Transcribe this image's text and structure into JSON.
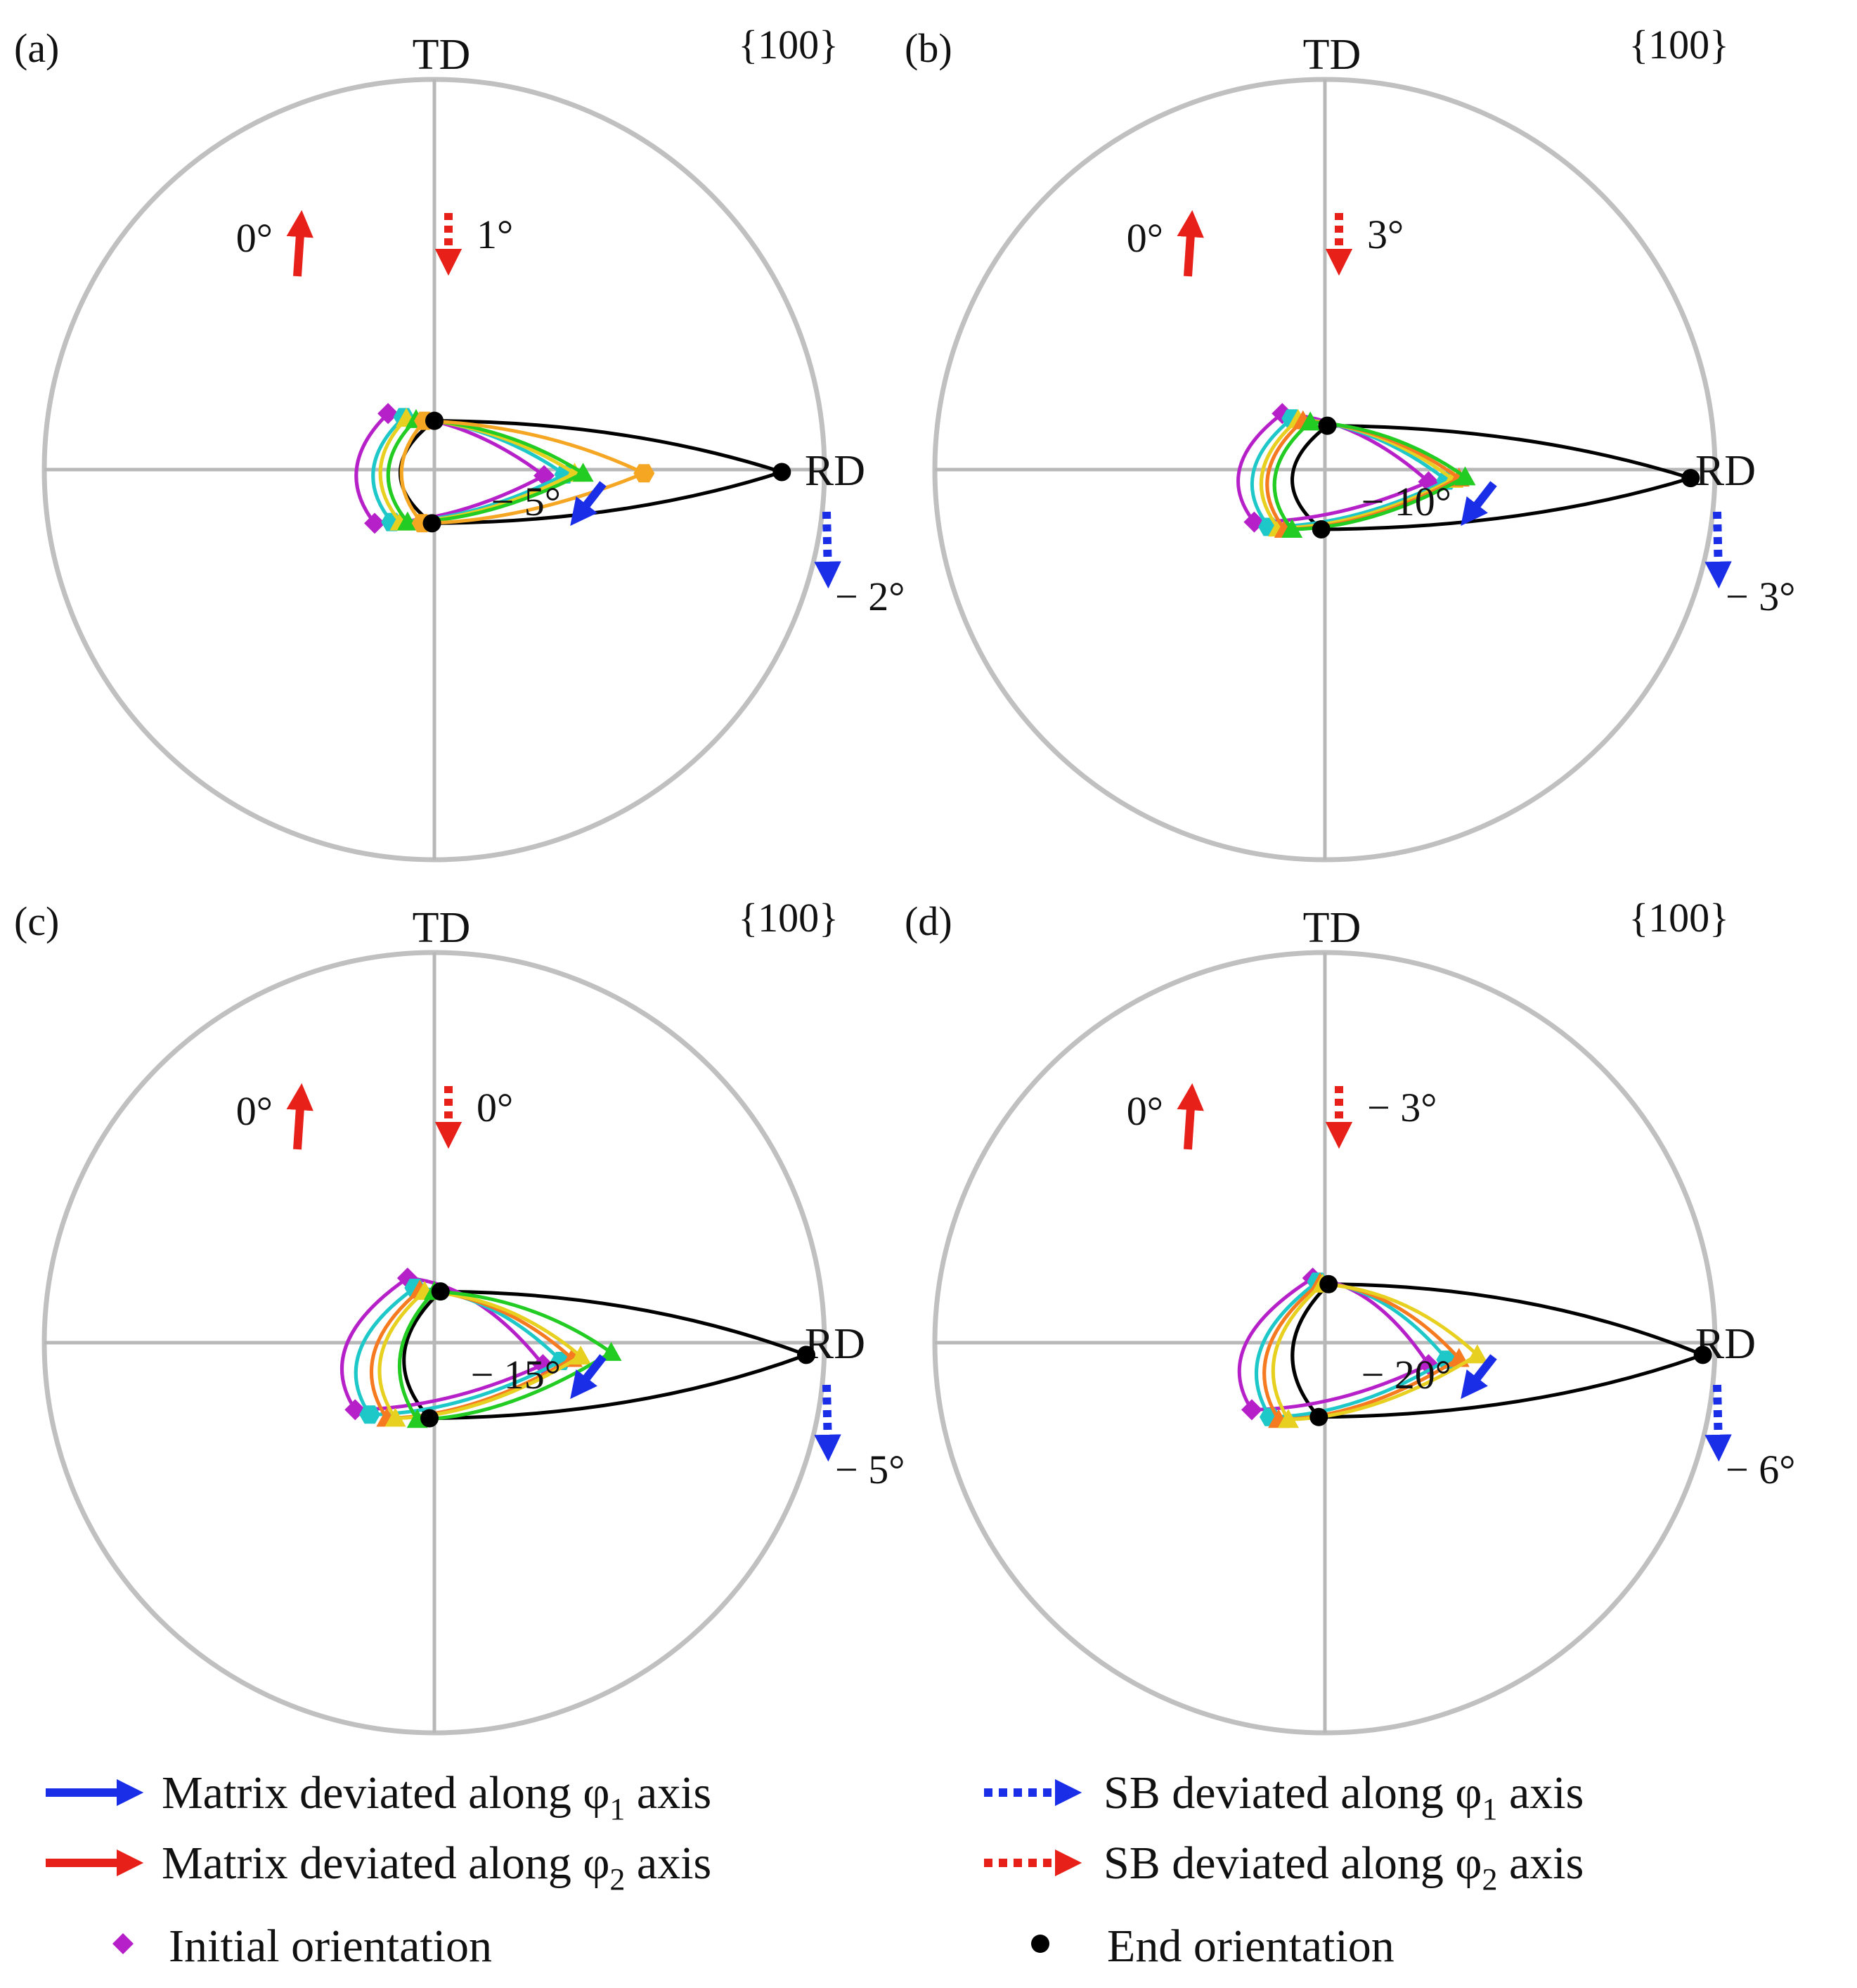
{
  "figure": {
    "panels": [
      {
        "id": "a",
        "label": "(a)",
        "plane": "{100}",
        "axis_top": "TD",
        "axis_right": "RD",
        "annotations": {
          "matrix_phi2": "0°",
          "sb_phi2": "1°",
          "matrix_phi1": "− 5°",
          "sb_phi1": "− 2°"
        },
        "end_orientation": [
          [
            0.0,
            0.4
          ],
          [
            2.85,
            -0.02
          ],
          [
            -0.02,
            -0.44
          ]
        ],
        "curves": [
          {
            "color": "#b620c8",
            "marker": "diamond",
            "start": [
              -0.38,
              0.46
            ],
            "peak": [
              0.9,
              -0.05
            ],
            "bottom": [
              -0.49,
              -0.44
            ]
          },
          {
            "color": "#1ec8c8",
            "marker": "hexagon",
            "start": [
              -0.25,
              0.43
            ],
            "peak": [
              1.07,
              -0.04
            ],
            "bottom": [
              -0.35,
              -0.43
            ]
          },
          {
            "color": "#e8d020",
            "marker": "triangle",
            "start": [
              -0.23,
              0.42
            ],
            "peak": [
              1.15,
              -0.03
            ],
            "bottom": [
              -0.28,
              -0.43
            ]
          },
          {
            "color": "#22cc22",
            "marker": "triangle",
            "start": [
              -0.15,
              0.41
            ],
            "peak": [
              1.22,
              -0.03
            ],
            "bottom": [
              -0.22,
              -0.43
            ]
          },
          {
            "color": "#f5a623",
            "marker": "hexagon",
            "start": [
              -0.08,
              0.4
            ],
            "peak": [
              1.72,
              -0.03
            ],
            "bottom": [
              -0.1,
              -0.44
            ]
          }
        ]
      },
      {
        "id": "b",
        "label": "(b)",
        "plane": "{100}",
        "axis_top": "TD",
        "axis_right": "RD",
        "annotations": {
          "matrix_phi2": "0°",
          "sb_phi2": "3°",
          "matrix_phi1": "− 10°",
          "sb_phi1": "− 3°"
        },
        "end_orientation": [
          [
            0.02,
            0.36
          ],
          [
            3.0,
            -0.07
          ],
          [
            -0.03,
            -0.49
          ]
        ],
        "curves": [
          {
            "color": "#b620c8",
            "marker": "diamond",
            "start": [
              -0.35,
              0.46
            ],
            "peak": [
              0.85,
              -0.1
            ],
            "bottom": [
              -0.58,
              -0.43
            ]
          },
          {
            "color": "#1ec8c8",
            "marker": "hexagon",
            "start": [
              -0.27,
              0.42
            ],
            "peak": [
              1.0,
              -0.09
            ],
            "bottom": [
              -0.46,
              -0.47
            ]
          },
          {
            "color": "#e8d020",
            "marker": "triangle",
            "start": [
              -0.22,
              0.41
            ],
            "peak": [
              1.05,
              -0.08
            ],
            "bottom": [
              -0.38,
              -0.48
            ]
          },
          {
            "color": "#f57a20",
            "marker": "triangle",
            "start": [
              -0.18,
              0.4
            ],
            "peak": [
              1.1,
              -0.07
            ],
            "bottom": [
              -0.33,
              -0.49
            ]
          },
          {
            "color": "#22cc22",
            "marker": "triangle",
            "start": [
              -0.12,
              0.39
            ],
            "peak": [
              1.15,
              -0.06
            ],
            "bottom": [
              -0.27,
              -0.49
            ]
          }
        ]
      },
      {
        "id": "c",
        "label": "(c)",
        "plane": "{100}",
        "axis_top": "TD",
        "axis_right": "RD",
        "annotations": {
          "matrix_phi2": "0°",
          "sb_phi2": "0°",
          "matrix_phi1": "− 15°",
          "sb_phi1": "− 5°"
        },
        "end_orientation": [
          [
            0.05,
            0.42
          ],
          [
            3.05,
            -0.1
          ],
          [
            -0.04,
            -0.62
          ]
        ],
        "curves": [
          {
            "color": "#b620c8",
            "marker": "diamond",
            "start": [
              -0.22,
              0.53
            ],
            "peak": [
              0.89,
              -0.18
            ],
            "bottom": [
              -0.65,
              -0.55
            ]
          },
          {
            "color": "#1ec8c8",
            "marker": "hexagon",
            "start": [
              -0.16,
              0.45
            ],
            "peak": [
              1.04,
              -0.15
            ],
            "bottom": [
              -0.53,
              -0.59
            ]
          },
          {
            "color": "#f57a20",
            "marker": "triangle",
            "start": [
              -0.12,
              0.43
            ],
            "peak": [
              1.13,
              -0.13
            ],
            "bottom": [
              -0.39,
              -0.62
            ]
          },
          {
            "color": "#e8d020",
            "marker": "triangle",
            "start": [
              -0.08,
              0.42
            ],
            "peak": [
              1.2,
              -0.11
            ],
            "bottom": [
              -0.32,
              -0.62
            ]
          },
          {
            "color": "#22cc22",
            "marker": "triangle",
            "start": [
              0.0,
              0.42
            ],
            "peak": [
              1.45,
              -0.08
            ],
            "bottom": [
              -0.14,
              -0.63
            ]
          }
        ]
      },
      {
        "id": "d",
        "label": "(d)",
        "plane": "{100}",
        "axis_top": "TD",
        "axis_right": "RD",
        "annotations": {
          "matrix_phi2": "0°",
          "sb_phi2": "− 3°",
          "matrix_phi1": "− 20°",
          "sb_phi1": "− 6°"
        },
        "end_orientation": [
          [
            0.03,
            0.48
          ],
          [
            3.1,
            -0.1
          ],
          [
            -0.05,
            -0.61
          ]
        ],
        "curves": [
          {
            "color": "#b620c8",
            "marker": "diamond",
            "start": [
              -0.1,
              0.53
            ],
            "peak": [
              0.85,
              -0.18
            ],
            "bottom": [
              -0.6,
              -0.55
            ]
          },
          {
            "color": "#1ec8c8",
            "marker": "hexagon",
            "start": [
              -0.06,
              0.5
            ],
            "peak": [
              1.0,
              -0.14
            ],
            "bottom": [
              -0.45,
              -0.61
            ]
          },
          {
            "color": "#f57a20",
            "marker": "triangle",
            "start": [
              -0.04,
              0.49
            ],
            "peak": [
              1.1,
              -0.13
            ],
            "bottom": [
              -0.38,
              -0.63
            ]
          },
          {
            "color": "#e8d020",
            "marker": "triangle",
            "start": [
              -0.02,
              0.48
            ],
            "peak": [
              1.25,
              -0.1
            ],
            "bottom": [
              -0.3,
              -0.63
            ]
          }
        ]
      }
    ]
  },
  "legend": {
    "matrix_phi1": {
      "prefix": "Matrix deviated along φ",
      "sub": "1",
      "suffix": " axis"
    },
    "matrix_phi2": {
      "prefix": "Matrix deviated along φ",
      "sub": "2",
      "suffix": " axis"
    },
    "sb_phi1": {
      "prefix": "SB deviated along φ",
      "sub": "1",
      "suffix": " axis"
    },
    "sb_phi2": {
      "prefix": "SB deviated along φ",
      "sub": "2",
      "suffix": " axis"
    },
    "initial": "Initial orientation",
    "end": "End orientation"
  },
  "colors": {
    "circle": "#c0c0c0",
    "axis": "#b8b8b8",
    "end_curve": "#000000",
    "arrow_red": "#e8201a",
    "arrow_blue": "#1a2ee8",
    "initial_marker": "#b620c8",
    "end_marker": "#000000"
  }
}
